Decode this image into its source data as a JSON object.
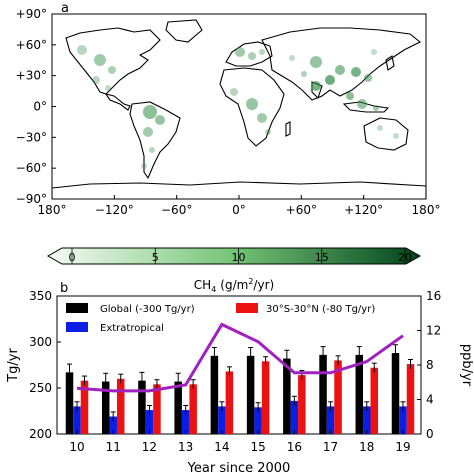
{
  "panel_a": {
    "label": "a",
    "lat_ticks": [
      "+90°",
      "+60°",
      "+30°",
      "0°",
      "−30°",
      "−60°",
      "−90°"
    ],
    "lon_ticks": [
      "180°",
      "−120°",
      "−60°",
      "0°",
      "+60°",
      "+120°",
      "180°"
    ],
    "colorbar": {
      "ticks": [
        "0",
        "5",
        "10",
        "15",
        "20"
      ],
      "label_main": "CH",
      "label_sub": "4",
      "label_unit": "(g/m",
      "label_sup": "2",
      "label_end": "/yr)",
      "min": 0,
      "max": 20,
      "color_low": "#f7fcf5",
      "color_high": "#00441b"
    }
  },
  "chart_data": {
    "type": "bar",
    "panel_label": "b",
    "categories": [
      "10",
      "11",
      "12",
      "13",
      "14",
      "15",
      "16",
      "17",
      "18",
      "19"
    ],
    "xlabel": "Year since 2000",
    "ylabel": "Tg/yr",
    "ylabel_right": "ppb/yr",
    "ylim": [
      200,
      350
    ],
    "ylim_right": [
      0,
      16
    ],
    "yticks": [
      "200",
      "250",
      "300",
      "350"
    ],
    "yticks_right": [
      "0",
      "4",
      "8",
      "12",
      "16"
    ],
    "series": [
      {
        "name": "Global (-300 Tg/yr)",
        "color": "#000000",
        "values": [
          267,
          257,
          258,
          257,
          285,
          285,
          282,
          286,
          286,
          288
        ],
        "errors": [
          9,
          9,
          9,
          9,
          9,
          9,
          9,
          9,
          9,
          9
        ]
      },
      {
        "name": "Extratropical",
        "color": "#0a1ee6",
        "values": [
          230,
          219,
          226,
          226,
          230,
          229,
          236,
          230,
          230,
          230
        ],
        "errors": [
          5,
          5,
          5,
          5,
          5,
          5,
          5,
          5,
          5,
          5
        ]
      },
      {
        "name": "30°S-30°N (-80 Tg/yr)",
        "color": "#ee1111",
        "values": [
          258,
          260,
          254,
          254,
          268,
          279,
          264,
          280,
          272,
          276
        ],
        "errors": [
          5,
          5,
          5,
          5,
          5,
          5,
          5,
          5,
          5,
          5
        ]
      }
    ],
    "line": {
      "axis": "right",
      "color": "#a020c0",
      "values": [
        5.3,
        5.0,
        5.0,
        5.7,
        12.7,
        10.7,
        7.1,
        7.1,
        8.4,
        11.4
      ]
    }
  }
}
